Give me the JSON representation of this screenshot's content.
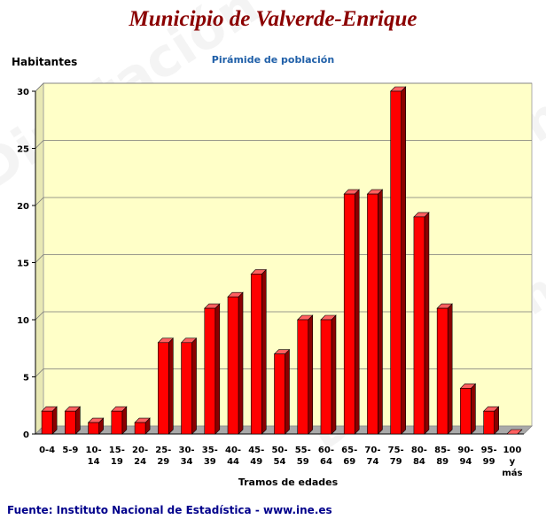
{
  "header": {
    "title": "Municipio de Valverde-Enrique"
  },
  "watermark": "Diputación de León",
  "footer": {
    "source": "Fuente: Instituto Nacional de Estadística - www.ine.es"
  },
  "colors": {
    "title": "#8b0000",
    "subtitle": "#1f5fa8",
    "plot_background": "#ffffc8",
    "bar": "#ff0000",
    "source": "#00008b"
  },
  "chart_data": {
    "type": "bar",
    "title": "Pirámide de población",
    "ylabel": "Habitantes",
    "xlabel": "Tramos de edades",
    "ylim": [
      0,
      30
    ],
    "yticks": [
      0,
      5,
      10,
      15,
      20,
      25,
      30
    ],
    "grid": true,
    "categories": [
      [
        "0-4"
      ],
      [
        "5-9"
      ],
      [
        "10-",
        "14"
      ],
      [
        "15-",
        "19"
      ],
      [
        "20-",
        "24"
      ],
      [
        "25-",
        "29"
      ],
      [
        "30-",
        "34"
      ],
      [
        "35-",
        "39"
      ],
      [
        "40-",
        "44"
      ],
      [
        "45-",
        "49"
      ],
      [
        "50-",
        "54"
      ],
      [
        "55-",
        "59"
      ],
      [
        "60-",
        "64"
      ],
      [
        "65-",
        "69"
      ],
      [
        "70-",
        "74"
      ],
      [
        "75-",
        "79"
      ],
      [
        "80-",
        "84"
      ],
      [
        "85-",
        "89"
      ],
      [
        "90-",
        "94"
      ],
      [
        "95-",
        "99"
      ],
      [
        "100",
        "y",
        "más"
      ]
    ],
    "values": [
      2,
      2,
      1,
      2,
      1,
      8,
      8,
      11,
      12,
      14,
      7,
      10,
      10,
      21,
      21,
      30,
      19,
      11,
      4,
      2,
      0
    ]
  }
}
